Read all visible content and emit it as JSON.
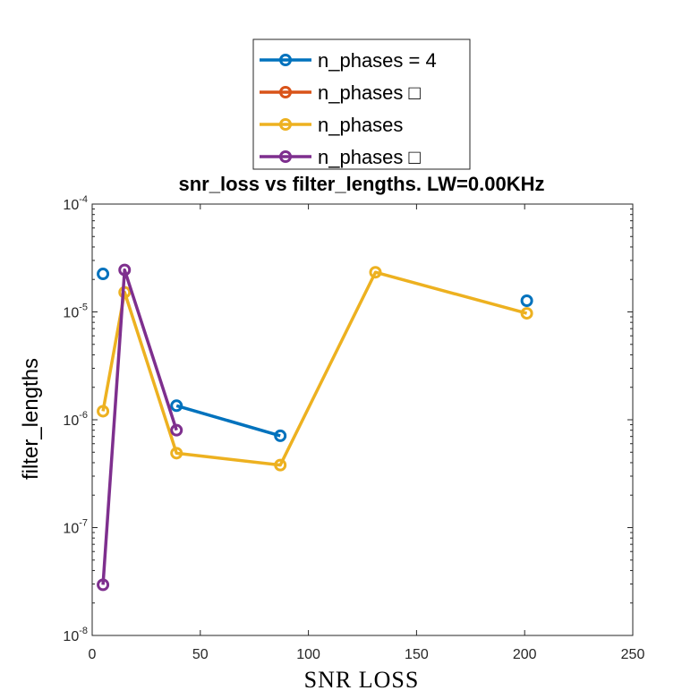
{
  "chart_data": {
    "type": "line",
    "title": "snr_loss vs filter_lengths. LW=0.00KHz",
    "xlabel": "SNR LOSS",
    "ylabel": "filter_lengths",
    "xlim": [
      0,
      250
    ],
    "ylim": [
      1e-08,
      0.0001
    ],
    "yscale": "log",
    "grid": false,
    "legend_position": "top-center",
    "x_ticks": [
      "0",
      "50",
      "100",
      "150",
      "200",
      "250"
    ],
    "y_ticks": [
      {
        "base": "10",
        "exp": "-8"
      },
      {
        "base": "10",
        "exp": "-7"
      },
      {
        "base": "10",
        "exp": "-6"
      },
      {
        "base": "10",
        "exp": "-5"
      },
      {
        "base": "10",
        "exp": "-4"
      }
    ],
    "series": [
      {
        "name": "n_phases = 4",
        "color": "#0072BD",
        "segments": [
          [
            [
              5,
              2.25e-05
            ]
          ],
          [
            [
              39,
              1.35e-06
            ],
            [
              87,
              7.1e-07
            ]
          ],
          [
            [
              201,
              1.27e-05
            ]
          ]
        ]
      },
      {
        "name": "n_phases □",
        "color": "#D95319",
        "segments": []
      },
      {
        "name": "n_phases",
        "color": "#EDB120",
        "segments": [
          [
            [
              5,
              1.2e-06
            ],
            [
              15,
              1.52e-05
            ],
            [
              39,
              4.9e-07
            ],
            [
              87,
              3.8e-07
            ],
            [
              131,
              2.33e-05
            ],
            [
              201,
              9.7e-06
            ]
          ]
        ]
      },
      {
        "name": "n_phases □",
        "color": "#7E2F8E",
        "segments": [
          [
            [
              5,
              2.95e-08
            ],
            [
              15,
              2.45e-05
            ],
            [
              39,
              8e-07
            ]
          ]
        ]
      }
    ]
  }
}
